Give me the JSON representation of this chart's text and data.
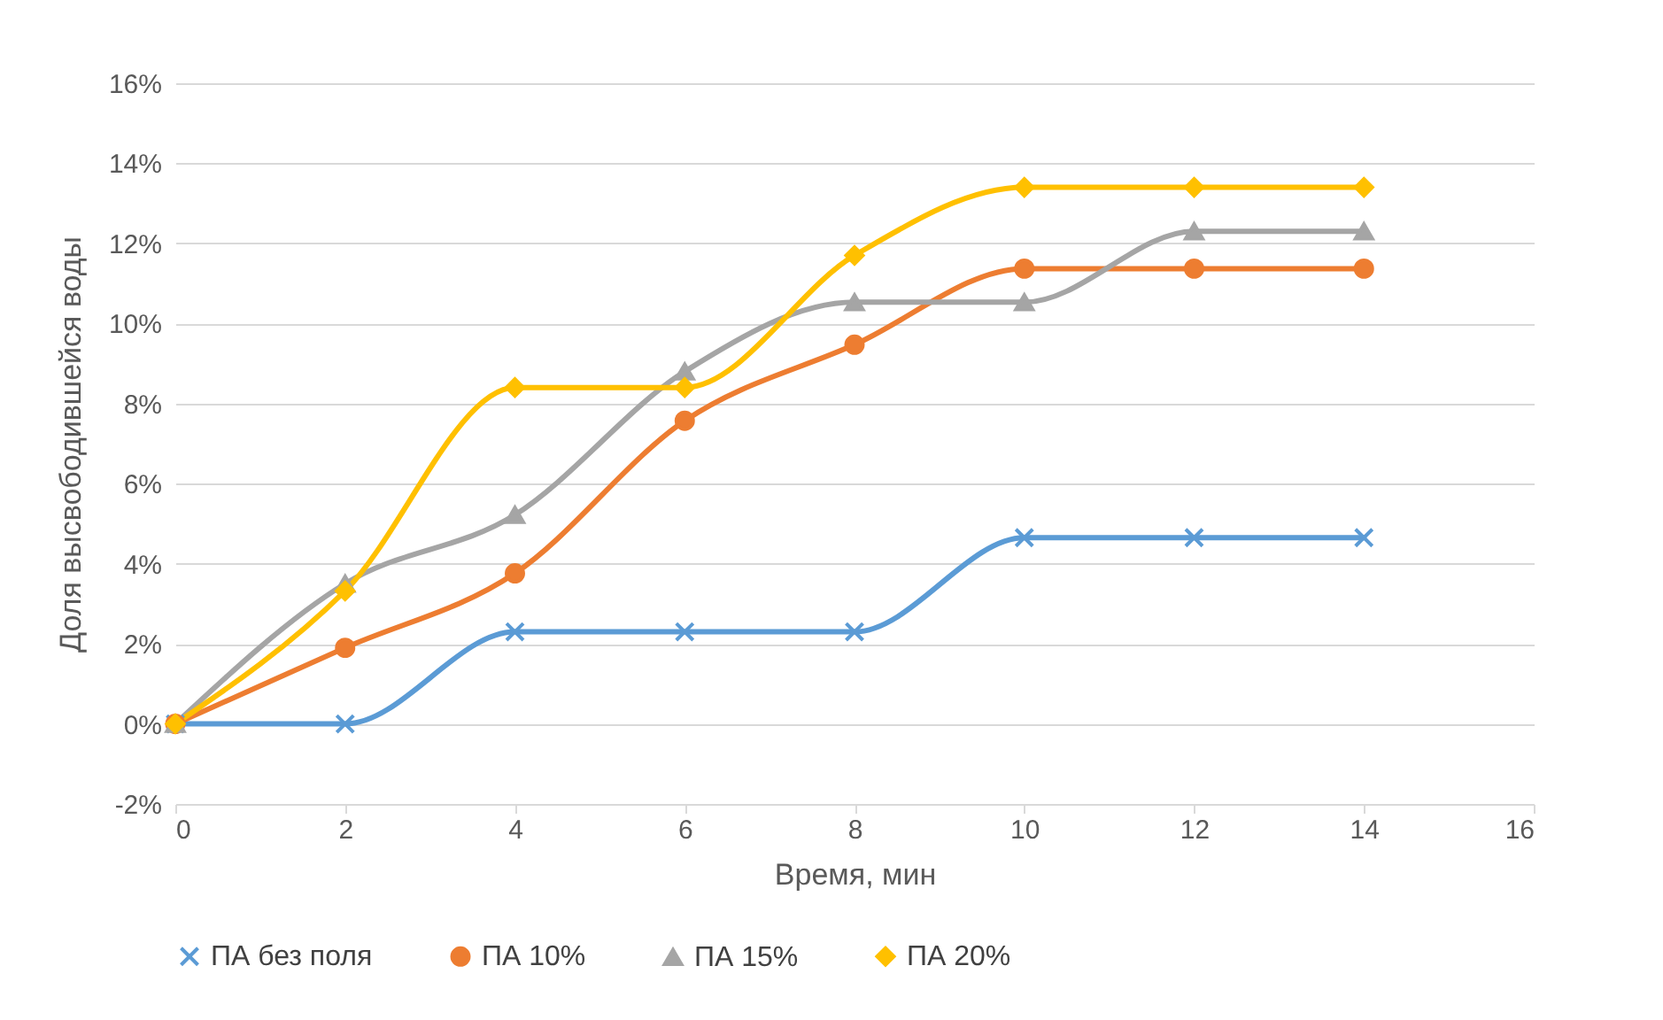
{
  "chart_data": {
    "type": "line",
    "xlabel": "Время, мин",
    "ylabel": "Доля высвободившейся воды",
    "x": [
      0,
      2,
      4,
      6,
      8,
      10,
      12,
      14
    ],
    "series": [
      {
        "name": "ПА без поля",
        "color": "#5b9bd5",
        "marker": "cross",
        "values": [
          0,
          0,
          2.3,
          2.3,
          2.3,
          4.65,
          4.65,
          4.65
        ]
      },
      {
        "name": "ПА 10%",
        "color": "#ed7d31",
        "marker": "circle",
        "values": [
          0,
          1.9,
          3.76,
          7.57,
          9.47,
          11.37,
          11.37,
          11.37
        ]
      },
      {
        "name": "ПА 15%",
        "color": "#a5a5a5",
        "marker": "triangle",
        "values": [
          0,
          3.5,
          5.22,
          8.8,
          10.53,
          10.53,
          12.3,
          12.3
        ]
      },
      {
        "name": "ПА 20%",
        "color": "#ffc000",
        "marker": "diamond",
        "values": [
          0,
          3.32,
          8.4,
          8.4,
          11.7,
          13.4,
          13.4,
          13.4
        ]
      }
    ],
    "xlim": [
      0,
      16
    ],
    "xticks": [
      0,
      2,
      4,
      6,
      8,
      10,
      12,
      14,
      16
    ],
    "ylim": [
      -2,
      16
    ],
    "yticks": [
      {
        "value": -2,
        "label": "-2%"
      },
      {
        "value": 0,
        "label": "0%"
      },
      {
        "value": 2,
        "label": "2%"
      },
      {
        "value": 4,
        "label": "4%"
      },
      {
        "value": 6,
        "label": "6%"
      },
      {
        "value": 8,
        "label": "8%"
      },
      {
        "value": 10,
        "label": "10%"
      },
      {
        "value": 12,
        "label": "12%"
      },
      {
        "value": 14,
        "label": "14%"
      },
      {
        "value": 16,
        "label": "16%"
      }
    ],
    "grid": "y",
    "legend": "bottom",
    "line_style": "solid"
  }
}
